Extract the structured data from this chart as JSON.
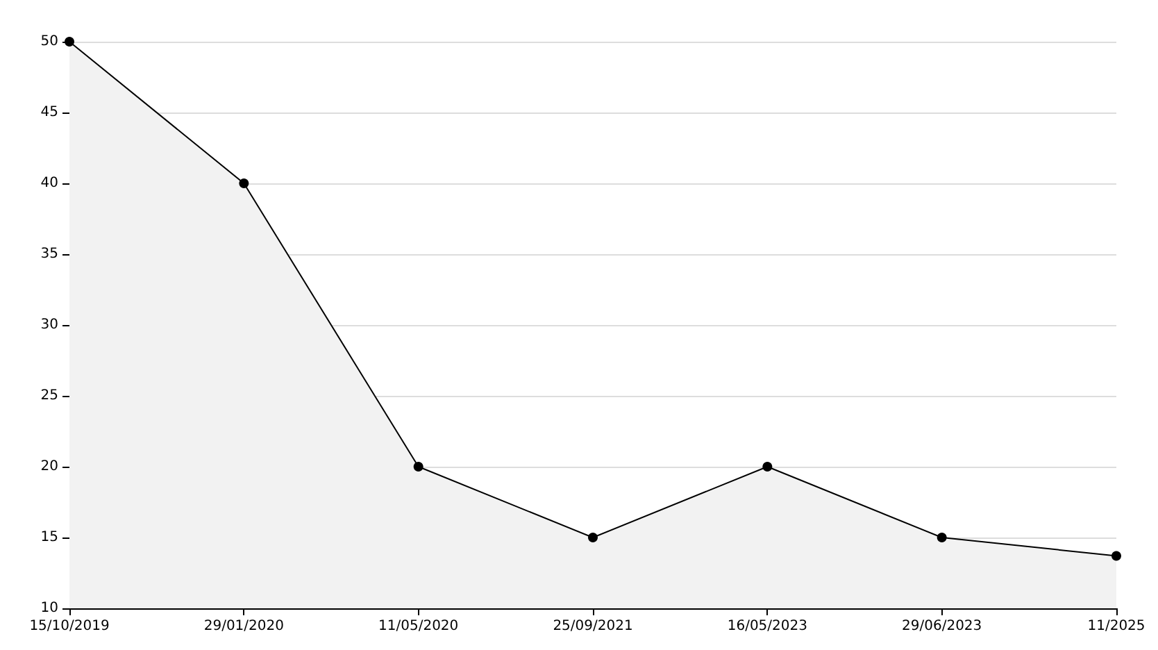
{
  "chart_data": {
    "type": "area",
    "categories": [
      "15/10/2019",
      "29/01/2020",
      "11/05/2020",
      "25/09/2021",
      "16/05/2023",
      "29/06/2023",
      "11/2025"
    ],
    "series": [
      {
        "color": "#000000",
        "values": [
          50,
          40,
          20,
          15,
          20,
          15,
          13.7
        ]
      }
    ],
    "ylim": [
      10,
      50
    ],
    "yticks": [
      10,
      15,
      20,
      25,
      30,
      35,
      40,
      45,
      50
    ],
    "grid": "y",
    "marker": "circle",
    "line_style": "solid"
  }
}
